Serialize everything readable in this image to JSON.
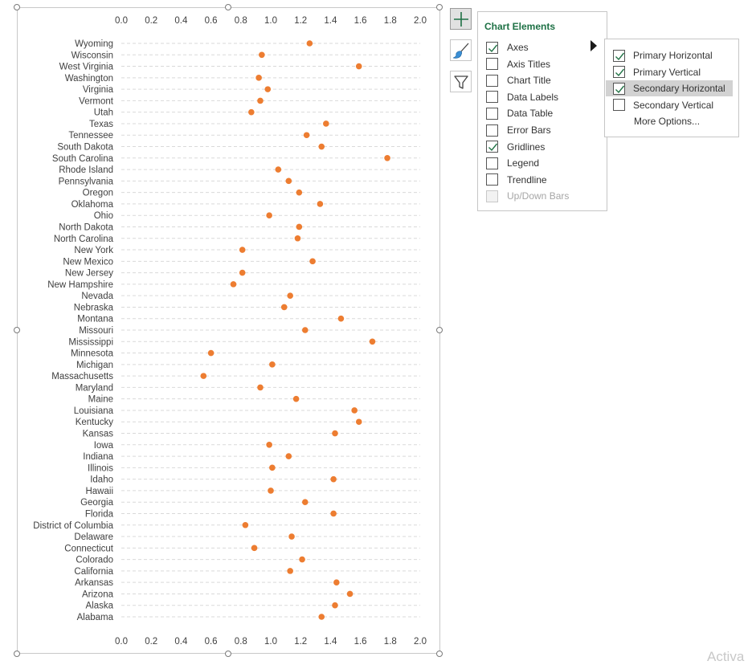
{
  "chart_data": {
    "type": "scatter",
    "categories": [
      "Wyoming",
      "Wisconsin",
      "West Virginia",
      "Washington",
      "Virginia",
      "Vermont",
      "Utah",
      "Texas",
      "Tennessee",
      "South Dakota",
      "South Carolina",
      "Rhode Island",
      "Pennsylvania",
      "Oregon",
      "Oklahoma",
      "Ohio",
      "North Dakota",
      "North Carolina",
      "New York",
      "New Mexico",
      "New Jersey",
      "New Hampshire",
      "Nevada",
      "Nebraska",
      "Montana",
      "Missouri",
      "Mississippi",
      "Minnesota",
      "Michigan",
      "Massachusetts",
      "Maryland",
      "Maine",
      "Louisiana",
      "Kentucky",
      "Kansas",
      "Iowa",
      "Indiana",
      "Illinois",
      "Idaho",
      "Hawaii",
      "Georgia",
      "Florida",
      "District of Columbia",
      "Delaware",
      "Connecticut",
      "Colorado",
      "California",
      "Arkansas",
      "Arizona",
      "Alaska",
      "Alabama"
    ],
    "values": [
      1.26,
      0.94,
      1.59,
      0.92,
      0.98,
      0.93,
      0.87,
      1.37,
      1.24,
      1.34,
      1.78,
      1.05,
      1.12,
      1.19,
      1.33,
      0.99,
      1.19,
      1.18,
      0.81,
      1.28,
      0.81,
      0.75,
      1.13,
      1.09,
      1.47,
      1.23,
      1.68,
      0.6,
      1.01,
      0.55,
      0.93,
      1.17,
      1.56,
      1.59,
      1.43,
      0.99,
      1.12,
      1.01,
      1.42,
      1.0,
      1.23,
      1.42,
      0.83,
      1.14,
      0.89,
      1.21,
      1.13,
      1.44,
      1.53,
      1.43,
      1.34
    ],
    "xlim": [
      0.0,
      2.0
    ],
    "x_ticks": [
      "0.0",
      "0.2",
      "0.4",
      "0.6",
      "0.8",
      "1.0",
      "1.2",
      "1.4",
      "1.6",
      "1.8",
      "2.0"
    ],
    "marker_color": "#ED7D31",
    "gridlines": true,
    "gridline_style": "dashed",
    "title": "",
    "xlabel": "",
    "ylabel": ""
  },
  "chart_elements_panel": {
    "title": "Chart Elements",
    "items": [
      {
        "label": "Axes",
        "checked": true,
        "disabled": false
      },
      {
        "label": "Axis Titles",
        "checked": false,
        "disabled": false
      },
      {
        "label": "Chart Title",
        "checked": false,
        "disabled": false
      },
      {
        "label": "Data Labels",
        "checked": false,
        "disabled": false
      },
      {
        "label": "Data Table",
        "checked": false,
        "disabled": false
      },
      {
        "label": "Error Bars",
        "checked": false,
        "disabled": false
      },
      {
        "label": "Gridlines",
        "checked": true,
        "disabled": false
      },
      {
        "label": "Legend",
        "checked": false,
        "disabled": false
      },
      {
        "label": "Trendline",
        "checked": false,
        "disabled": false
      },
      {
        "label": "Up/Down Bars",
        "checked": false,
        "disabled": true
      }
    ]
  },
  "axes_submenu": {
    "items": [
      {
        "label": "Primary Horizontal",
        "checked": true,
        "highlighted": false
      },
      {
        "label": "Primary Vertical",
        "checked": true,
        "highlighted": false
      },
      {
        "label": "Secondary Horizontal",
        "checked": true,
        "highlighted": true
      },
      {
        "label": "Secondary Vertical",
        "checked": false,
        "highlighted": false
      }
    ],
    "more_options": "More Options..."
  },
  "side_buttons": {
    "elements_icon": "plus-icon",
    "styles_icon": "paintbrush-icon",
    "filters_icon": "funnel-icon"
  },
  "colors": {
    "accent_green": "#1E7145",
    "checkmark_green": "#217346"
  },
  "watermark": "Activa"
}
